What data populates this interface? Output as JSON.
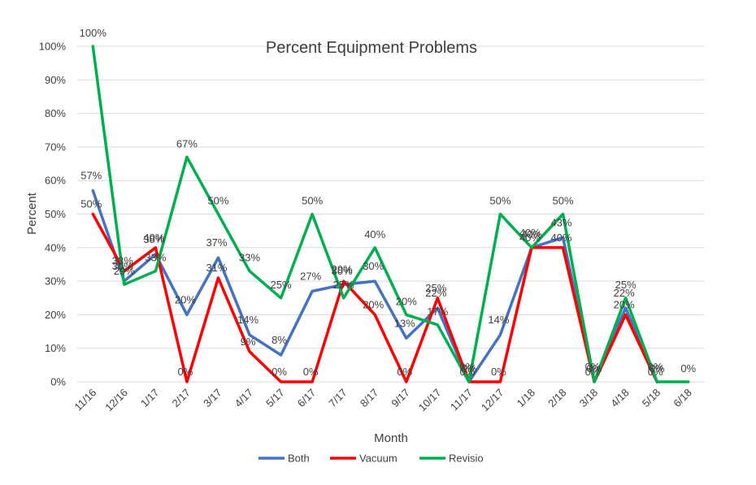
{
  "chart_data": {
    "type": "line",
    "title": "Percent Equipment Problems",
    "xlabel": "Month",
    "ylabel": "Percent",
    "ylim": [
      0,
      100
    ],
    "y_ticks": [
      "0%",
      "10%",
      "20%",
      "30%",
      "40%",
      "50%",
      "60%",
      "70%",
      "80%",
      "90%",
      "100%"
    ],
    "grid": "horizontal",
    "legend": "bottom",
    "categories": [
      "11/16",
      "12/16",
      "1/17",
      "2/17",
      "3/17",
      "4/17",
      "5/17",
      "6/17",
      "7/17",
      "8/17",
      "9/17",
      "10/17",
      "11/17",
      "12/17",
      "1/18",
      "2/18",
      "3/18",
      "4/18",
      "5/18",
      "6/18"
    ],
    "series": [
      {
        "name": "Both",
        "color": "#4472C4",
        "values": [
          57,
          30,
          38,
          20,
          37,
          14,
          8,
          27,
          29,
          30,
          13,
          22,
          0,
          14,
          40,
          43,
          0,
          22,
          0,
          null
        ],
        "labels": [
          "57%",
          "30%",
          "38%",
          "20%",
          "37%",
          "14%",
          "8%",
          "27%",
          "29%",
          "30%",
          "13%",
          "22%",
          "0%",
          "14%",
          "40%",
          "43%",
          "0%",
          "22%",
          "0%",
          null
        ]
      },
      {
        "name": "Vacuum",
        "color": "#FF0000",
        "values": [
          50,
          33,
          40,
          0,
          31,
          9,
          0,
          0,
          30,
          20,
          0,
          25,
          0,
          0,
          40,
          40,
          0,
          20,
          0,
          null
        ],
        "labels": [
          "50%",
          "33%",
          "40%",
          "0%",
          "31%",
          "9%",
          "0%",
          "0%",
          "30%",
          "20%",
          "0%",
          "25%",
          "0%",
          "0%",
          "40%",
          "40%",
          "0%",
          "20%",
          "0%",
          null
        ]
      },
      {
        "name": "Revisio",
        "color": "#00B050",
        "values": [
          100,
          29,
          33,
          67,
          50,
          33,
          25,
          50,
          25,
          40,
          20,
          17,
          0,
          50,
          40,
          50,
          0,
          25,
          0,
          0
        ],
        "labels": [
          "100%",
          "29%",
          "33%",
          "67%",
          "50%",
          "33%",
          "25%",
          "50%",
          "25%",
          "40%",
          "20%",
          "17%",
          "0%",
          "50%",
          "40%",
          "50%",
          "0%",
          "25%",
          "0%",
          "0%"
        ]
      }
    ]
  }
}
